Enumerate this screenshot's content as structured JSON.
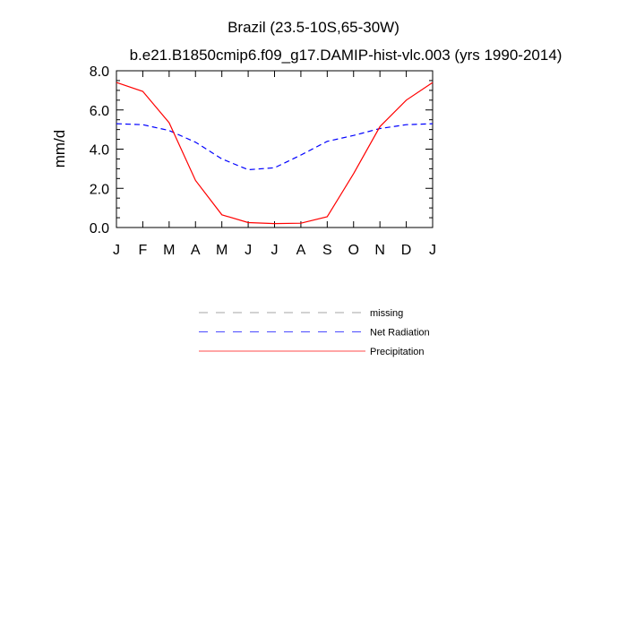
{
  "chart_data": {
    "type": "line",
    "title": "Brazil (23.5-10S,65-30W)",
    "subtitle": "b.e21.B1850cmip6.f09_g17.DAMIP-hist-vlc.003 (yrs 1990-2014)",
    "xlabel": "",
    "ylabel": "mm/d",
    "ylim": [
      0,
      8
    ],
    "yticks": [
      "0.0",
      "2.0",
      "4.0",
      "6.0",
      "8.0"
    ],
    "yticks_values": [
      0,
      2,
      4,
      6,
      8
    ],
    "categories": [
      "J",
      "F",
      "M",
      "A",
      "M",
      "J",
      "J",
      "A",
      "S",
      "O",
      "N",
      "D",
      "J"
    ],
    "series": [
      {
        "name": "Net Radiation",
        "color": "#0000ff",
        "style": "dashed",
        "values": [
          5.3,
          5.25,
          4.95,
          4.35,
          3.5,
          2.95,
          3.05,
          3.7,
          4.4,
          4.7,
          5.05,
          5.25,
          5.3
        ]
      },
      {
        "name": "Precipitation",
        "color": "#ff0000",
        "style": "solid",
        "values": [
          7.4,
          6.95,
          5.35,
          2.4,
          0.65,
          0.25,
          0.2,
          0.22,
          0.55,
          2.75,
          5.15,
          6.5,
          7.4
        ]
      }
    ],
    "legend": [
      {
        "name": "missing",
        "color": "#808080",
        "style": "dashed"
      },
      {
        "name": "Net Radiation",
        "color": "#0000ff",
        "style": "dashed"
      },
      {
        "name": "Precipitation",
        "color": "#ff0000",
        "style": "solid"
      }
    ],
    "legend_position": "below"
  }
}
